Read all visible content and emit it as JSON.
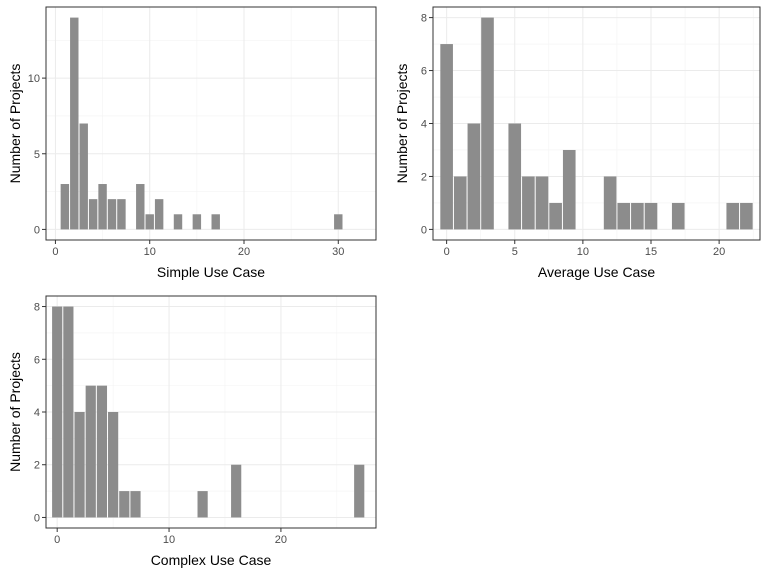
{
  "chart_data": [
    {
      "type": "bar",
      "xlabel": "Simple Use Case",
      "ylabel": "Number of Projects",
      "xlim": [
        -1,
        34
      ],
      "ylim": [
        0,
        14
      ],
      "x_ticks": [
        0,
        10,
        20,
        30
      ],
      "y_ticks": [
        0,
        5,
        10
      ],
      "bin_width": 1,
      "grid": true,
      "bar_color": "#8c8c8c",
      "x": [
        1,
        2,
        3,
        4,
        5,
        6,
        7,
        9,
        10,
        11,
        13,
        15,
        17,
        30
      ],
      "values": [
        3,
        14,
        7,
        2,
        3,
        2,
        2,
        3,
        1,
        2,
        1,
        1,
        1,
        1
      ]
    },
    {
      "type": "bar",
      "xlabel": "Average Use Case",
      "ylabel": "Number of Projects",
      "xlim": [
        -1,
        23
      ],
      "ylim": [
        0,
        8
      ],
      "x_ticks": [
        0,
        5,
        10,
        15,
        20
      ],
      "y_ticks": [
        0,
        2,
        4,
        6,
        8
      ],
      "bin_width": 1,
      "grid": true,
      "bar_color": "#8c8c8c",
      "x": [
        0,
        1,
        2,
        3,
        5,
        6,
        7,
        8,
        9,
        12,
        13,
        14,
        15,
        17,
        21,
        22
      ],
      "values": [
        7,
        2,
        4,
        8,
        4,
        2,
        2,
        1,
        3,
        2,
        1,
        1,
        1,
        1,
        1,
        1
      ]
    },
    {
      "type": "bar",
      "xlabel": "Complex Use Case",
      "ylabel": "Number of Projects",
      "xlim": [
        -1,
        28.5
      ],
      "ylim": [
        0,
        8
      ],
      "x_ticks": [
        0,
        10,
        20
      ],
      "y_ticks": [
        0,
        2,
        4,
        6,
        8
      ],
      "bin_width": 1,
      "grid": true,
      "bar_color": "#8c8c8c",
      "x": [
        0,
        1,
        2,
        3,
        4,
        5,
        6,
        7,
        13,
        16,
        27
      ],
      "values": [
        8,
        8,
        4,
        5,
        5,
        4,
        1,
        1,
        1,
        2,
        2
      ]
    }
  ]
}
